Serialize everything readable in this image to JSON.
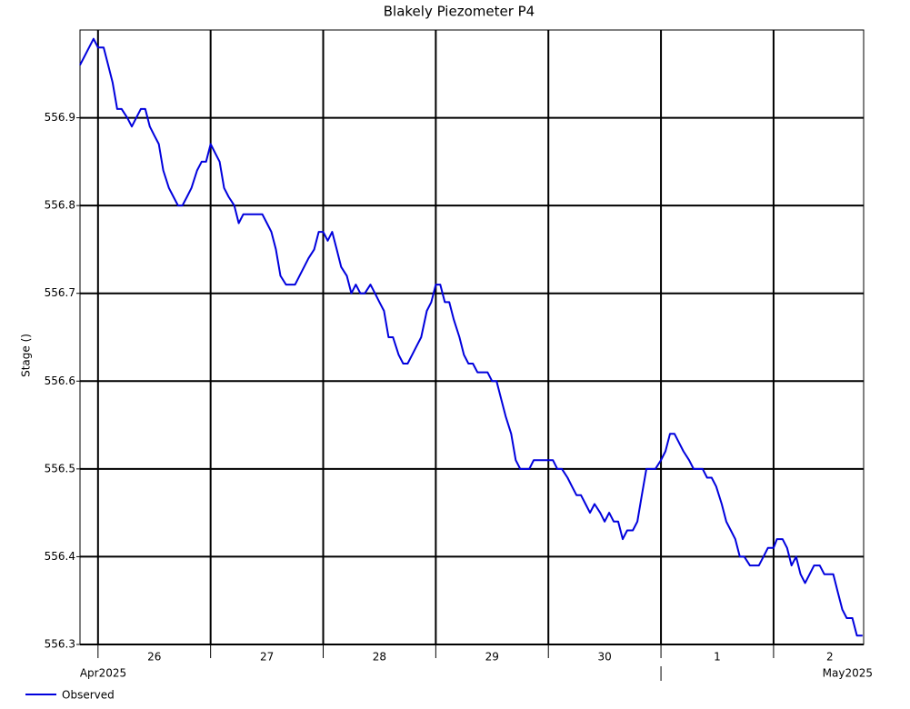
{
  "chart_data": {
    "type": "line",
    "title": "Blakely Piezometer P4",
    "y_label": "Stage ()",
    "x": [
      25.84,
      25.96,
      26.0,
      26.05,
      26.09,
      26.13,
      26.17,
      26.21,
      26.26,
      26.3,
      26.34,
      26.38,
      26.42,
      26.46,
      26.5,
      26.54,
      26.58,
      26.63,
      26.67,
      26.71,
      26.75,
      26.79,
      26.83,
      26.88,
      26.92,
      26.96,
      27.0,
      27.04,
      27.08,
      27.12,
      27.16,
      27.21,
      27.25,
      27.29,
      27.33,
      27.46,
      27.5,
      27.54,
      27.58,
      27.62,
      27.67,
      27.75,
      27.79,
      27.83,
      27.87,
      27.92,
      27.96,
      28.0,
      28.04,
      28.08,
      28.12,
      28.16,
      28.21,
      28.25,
      28.29,
      28.33,
      28.37,
      28.42,
      28.46,
      28.5,
      28.54,
      28.58,
      28.62,
      28.67,
      28.71,
      28.75,
      28.79,
      28.83,
      28.87,
      28.92,
      28.96,
      29.0,
      29.04,
      29.08,
      29.12,
      29.16,
      29.21,
      29.25,
      29.29,
      29.33,
      29.37,
      29.46,
      29.5,
      29.54,
      29.58,
      29.62,
      29.67,
      29.71,
      29.75,
      29.83,
      29.87,
      30.0,
      30.04,
      30.08,
      30.12,
      30.17,
      30.21,
      30.25,
      30.29,
      30.33,
      30.37,
      30.41,
      30.46,
      30.5,
      30.54,
      30.58,
      30.62,
      30.66,
      30.7,
      30.75,
      30.79,
      30.83,
      30.87,
      30.95,
      31.0,
      31.04,
      31.08,
      31.12,
      31.16,
      31.2,
      31.25,
      31.29,
      31.37,
      31.41,
      31.45,
      31.49,
      31.54,
      31.58,
      31.62,
      31.66,
      31.7,
      31.74,
      31.79,
      31.87,
      31.91,
      31.95,
      32.0,
      32.03,
      32.08,
      32.12,
      32.16,
      32.2,
      32.24,
      32.28,
      32.32,
      32.36,
      32.41,
      32.45,
      32.53,
      32.57,
      32.61,
      32.65,
      32.7,
      32.74,
      32.79
    ],
    "series": [
      {
        "name": "Observed",
        "color": "#0000dd",
        "values": [
          556.96,
          556.99,
          556.98,
          556.98,
          556.96,
          556.94,
          556.91,
          556.91,
          556.9,
          556.89,
          556.9,
          556.91,
          556.91,
          556.89,
          556.88,
          556.87,
          556.84,
          556.82,
          556.81,
          556.8,
          556.8,
          556.81,
          556.82,
          556.84,
          556.85,
          556.85,
          556.87,
          556.86,
          556.85,
          556.82,
          556.81,
          556.8,
          556.78,
          556.79,
          556.79,
          556.79,
          556.78,
          556.77,
          556.75,
          556.72,
          556.71,
          556.71,
          556.72,
          556.73,
          556.74,
          556.75,
          556.77,
          556.77,
          556.76,
          556.77,
          556.75,
          556.73,
          556.72,
          556.7,
          556.71,
          556.7,
          556.7,
          556.71,
          556.7,
          556.69,
          556.68,
          556.65,
          556.65,
          556.63,
          556.62,
          556.62,
          556.63,
          556.64,
          556.65,
          556.68,
          556.69,
          556.71,
          556.71,
          556.69,
          556.69,
          556.67,
          556.65,
          556.63,
          556.62,
          556.62,
          556.61,
          556.61,
          556.6,
          556.6,
          556.58,
          556.56,
          556.54,
          556.51,
          556.5,
          556.5,
          556.51,
          556.51,
          556.51,
          556.5,
          556.5,
          556.49,
          556.48,
          556.47,
          556.47,
          556.46,
          556.45,
          556.46,
          556.45,
          556.44,
          556.45,
          556.44,
          556.44,
          556.42,
          556.43,
          556.43,
          556.44,
          556.47,
          556.5,
          556.5,
          556.51,
          556.52,
          556.54,
          556.54,
          556.53,
          556.52,
          556.51,
          556.5,
          556.5,
          556.49,
          556.49,
          556.48,
          556.46,
          556.44,
          556.43,
          556.42,
          556.4,
          556.4,
          556.39,
          556.39,
          556.4,
          556.41,
          556.41,
          556.42,
          556.42,
          556.41,
          556.39,
          556.4,
          556.38,
          556.37,
          556.38,
          556.39,
          556.39,
          556.38,
          556.38,
          556.36,
          556.34,
          556.33,
          556.33,
          556.31,
          556.31
        ]
      }
    ],
    "xlim": [
      25.84,
      32.8
    ],
    "xticks": [
      26,
      27,
      28,
      29,
      30,
      {
        "value": 31,
        "label": "1"
      },
      {
        "value": 32,
        "label": "2"
      }
    ],
    "month_labels": [
      "Apr2025",
      "May2025"
    ],
    "ylim": [
      556.3,
      557.0
    ],
    "yticks": [
      556.3,
      556.4,
      556.5,
      556.6,
      556.7,
      556.8,
      556.9
    ],
    "grid": true,
    "legend": "bottom-left"
  }
}
